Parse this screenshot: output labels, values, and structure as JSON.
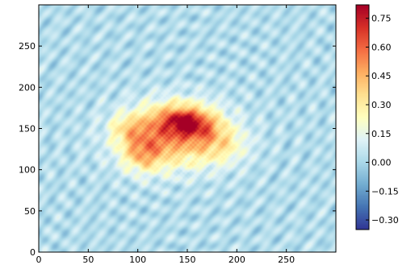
{
  "chart_data": {
    "type": "heatmap",
    "title": "",
    "xlabel": "",
    "ylabel": "",
    "xlim": [
      0,
      300
    ],
    "ylim": [
      0,
      300
    ],
    "xticks": [
      0,
      50,
      100,
      150,
      200,
      250
    ],
    "xtick_labels": [
      "0",
      "50",
      "100",
      "150",
      "200",
      "250"
    ],
    "yticks": [
      0,
      50,
      100,
      150,
      200,
      250
    ],
    "ytick_labels": [
      "0",
      "50",
      "100",
      "150",
      "200",
      "250"
    ],
    "colormap": "RdYlBu_r",
    "colorbar": {
      "min": -0.35,
      "max": 0.82,
      "ticks": [
        -0.3,
        -0.15,
        0.0,
        0.15,
        0.3,
        0.45,
        0.6,
        0.75
      ],
      "tick_labels": [
        "−0.30",
        "−0.15",
        "0.00",
        "0.15",
        "0.30",
        "0.45",
        "0.60",
        "0.75"
      ]
    },
    "background_level": 0.02,
    "blobs": [
      {
        "x": 135,
        "y": 140,
        "sx": 36,
        "sy": 26,
        "amp": 0.45
      },
      {
        "x": 145,
        "y": 160,
        "sx": 22,
        "sy": 14,
        "amp": 0.38
      },
      {
        "x": 148,
        "y": 158,
        "sx": 8,
        "sy": 7,
        "amp": 0.2
      },
      {
        "x": 105,
        "y": 120,
        "sx": 14,
        "sy": 16,
        "amp": 0.28
      },
      {
        "x": 185,
        "y": 130,
        "sx": 18,
        "sy": 16,
        "amp": 0.18
      },
      {
        "x": 90,
        "y": 150,
        "sx": 12,
        "sy": 12,
        "amp": 0.18
      },
      {
        "x": 165,
        "y": 150,
        "sx": 12,
        "sy": 10,
        "amp": 0.15
      }
    ]
  }
}
